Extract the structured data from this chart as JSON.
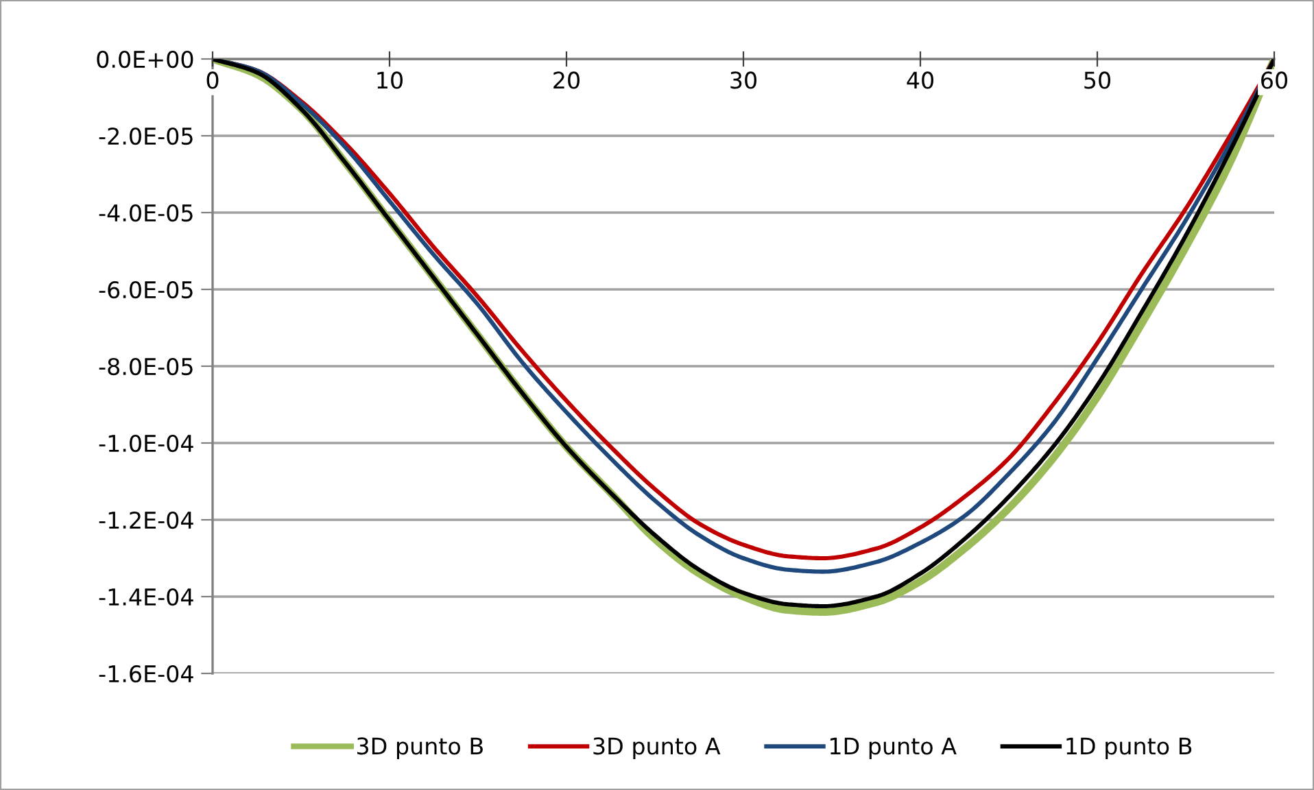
{
  "chart_data": {
    "type": "line",
    "xlim": [
      0,
      60
    ],
    "xticks": [
      0,
      10,
      20,
      30,
      40,
      50,
      60
    ],
    "ylim": [
      -0.00016,
      0
    ],
    "yticks": [
      {
        "value": 0,
        "label": "0.0E+00"
      },
      {
        "value": -2e-05,
        "label": "-2.0E-05"
      },
      {
        "value": -4e-05,
        "label": "-4.0E-05"
      },
      {
        "value": -6e-05,
        "label": "-6.0E-05"
      },
      {
        "value": -8e-05,
        "label": "-8.0E-05"
      },
      {
        "value": -0.0001,
        "label": "-1.0E-04"
      },
      {
        "value": -0.00012,
        "label": "-1.2E-04"
      },
      {
        "value": -0.00014,
        "label": "-1.4E-04"
      },
      {
        "value": -0.00016,
        "label": "-1.6E-04"
      }
    ],
    "grid": "y",
    "legend": "bottom",
    "marker": "none",
    "line_style": "solid",
    "x": [
      0,
      2.5,
      5,
      7.5,
      10,
      12.5,
      15,
      17.5,
      20,
      22.5,
      25,
      27.5,
      30,
      32.5,
      34.5,
      37.5,
      40,
      42.5,
      45,
      47.5,
      50,
      52.5,
      55,
      57.5,
      60
    ],
    "series": [
      {
        "name": "3D punto B",
        "color": "#9bbb59",
        "values": [
          0,
          -4e-06,
          -1.3e-05,
          -2.7e-05,
          -4.2e-05,
          -5.7e-05,
          -7.2e-05,
          -8.7e-05,
          -0.000101,
          -0.000113,
          -0.000125,
          -0.000134,
          -0.00014,
          -0.0001435,
          -0.000144,
          -0.0001415,
          -0.000136,
          -0.0001275,
          -0.000117,
          -0.000104,
          -8.8e-05,
          -6.9e-05,
          -4.9e-05,
          -2.7e-05,
          0
        ]
      },
      {
        "name": "3D punto A",
        "color": "#c00000",
        "values": [
          0,
          -3e-06,
          -1.1e-05,
          -2.2e-05,
          -3.5e-05,
          -4.9e-05,
          -6.2e-05,
          -7.6e-05,
          -8.9e-05,
          -0.000101,
          -0.000112,
          -0.000121,
          -0.0001265,
          -0.0001295,
          -0.00013,
          -0.0001275,
          -0.000122,
          -0.000114,
          -0.000104,
          -9e-05,
          -7.4e-05,
          -5.6e-05,
          -3.9e-05,
          -2e-05,
          0
        ]
      },
      {
        "name": "1D punto A",
        "color": "#1f497d",
        "values": [
          0,
          -3e-06,
          -1.15e-05,
          -2.3e-05,
          -3.7e-05,
          -5.1e-05,
          -6.4e-05,
          -7.9e-05,
          -9.2e-05,
          -0.000104,
          -0.000115,
          -0.000124,
          -0.00013,
          -0.000133,
          -0.0001335,
          -0.000131,
          -0.000126,
          -0.000119,
          -0.000108,
          -9.5e-05,
          -7.8e-05,
          -6e-05,
          -4.2e-05,
          -2.2e-05,
          0
        ]
      },
      {
        "name": "1D punto B",
        "color": "#000000",
        "values": [
          0,
          -3.5e-06,
          -1.3e-05,
          -2.7e-05,
          -4.2e-05,
          -5.7e-05,
          -7.2e-05,
          -8.7e-05,
          -0.000101,
          -0.000113,
          -0.000124,
          -0.000133,
          -0.000139,
          -0.000142,
          -0.0001425,
          -0.00014,
          -0.000134,
          -0.000125,
          -0.000114,
          -0.000101,
          -8.5e-05,
          -6.6e-05,
          -4.6e-05,
          -2.4e-05,
          0
        ]
      }
    ]
  }
}
